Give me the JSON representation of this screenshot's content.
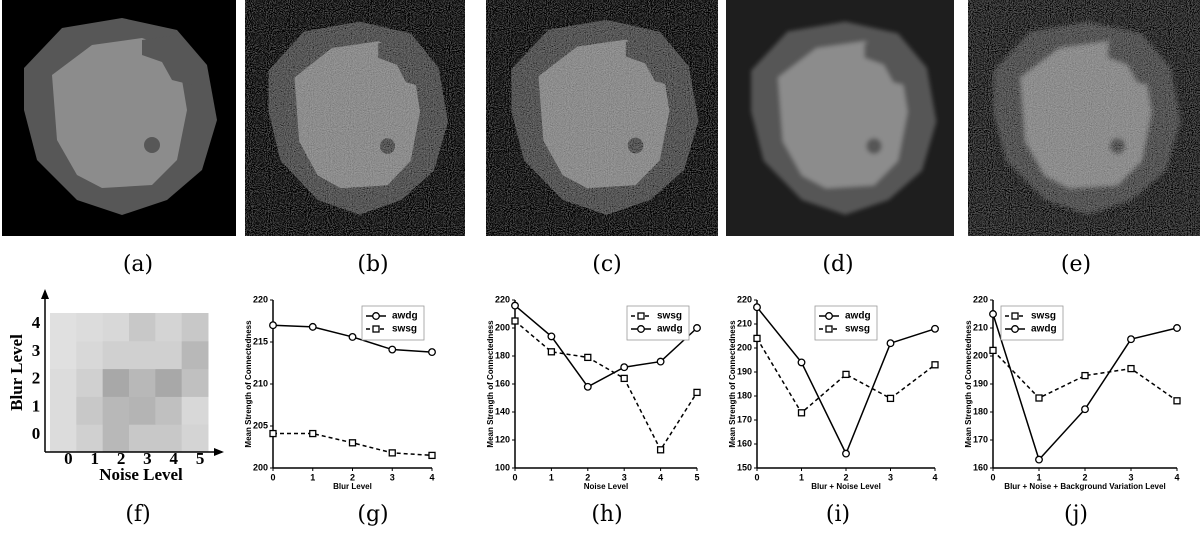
{
  "panel_labels": [
    "(a)",
    "(b)",
    "(c)",
    "(d)",
    "(e)",
    "(f)",
    "(g)",
    "(h)",
    "(i)",
    "(j)"
  ],
  "chart_data": [
    {
      "type": "heatmap",
      "xlabel": "Noise Level",
      "ylabel": "Blur Level",
      "x_categories": [
        "0",
        "1",
        "2",
        "3",
        "4",
        "5"
      ],
      "y_categories": [
        "0",
        "1",
        "2",
        "3",
        "4"
      ],
      "cell_colors": [
        [
          "#dcdcdc",
          "#d0d0d0",
          "#b8b8b8",
          "#c8c8c8",
          "#c8c8c8",
          "#d4d4d4"
        ],
        [
          "#dcdcdc",
          "#c8c8c8",
          "#b8b8b8",
          "#b4b4b4",
          "#c0c0c0",
          "#d8d8d8"
        ],
        [
          "#dcdcdc",
          "#d0d0d0",
          "#a8a8a8",
          "#b8b8b8",
          "#a8a8a8",
          "#c0c0c0"
        ],
        [
          "#e0e0e0",
          "#d8d8d8",
          "#d0d0d0",
          "#d0d0d0",
          "#d0d0d0",
          "#b8b8b8"
        ],
        [
          "#e0e0e0",
          "#dcdcdc",
          "#d8d8d8",
          "#c8c8c8",
          "#d4d4d4",
          "#c8c8c8"
        ]
      ]
    },
    {
      "type": "line",
      "xlabel": "Blur Level",
      "ylabel": "Mean Strength of Connectedness",
      "x": [
        0,
        1,
        2,
        3,
        4
      ],
      "xlim": [
        0,
        4
      ],
      "xticks": [
        0,
        1,
        2,
        3,
        4
      ],
      "ylim": [
        200,
        220
      ],
      "yticks": [
        200,
        205,
        210,
        215,
        220
      ],
      "legend": "upper right",
      "series": [
        {
          "name": "awdg",
          "color": "#000000",
          "marker": "circle",
          "dashed": false,
          "values": [
            217,
            216.8,
            215.6,
            214.1,
            213.8
          ]
        },
        {
          "name": "swsg",
          "color": "#000000",
          "marker": "square",
          "dashed": true,
          "values": [
            204.1,
            204.1,
            203,
            201.8,
            201.5
          ]
        }
      ]
    },
    {
      "type": "line",
      "xlabel": "Noise Level",
      "ylabel": "Mean Strength of Connectedness",
      "x": [
        0,
        1,
        2,
        3,
        4,
        5
      ],
      "xlim": [
        0,
        5
      ],
      "xticks": [
        0,
        1,
        2,
        3,
        4,
        5
      ],
      "ylim": [
        100,
        220
      ],
      "yticks": [
        100,
        120,
        140,
        160,
        180,
        200,
        220
      ],
      "legend": "upper right",
      "series": [
        {
          "name": "swsg",
          "color": "#000000",
          "marker": "square",
          "dashed": true,
          "values": [
            205,
            183,
            179,
            164,
            113,
            154
          ]
        },
        {
          "name": "awdg",
          "color": "#000000",
          "marker": "circle",
          "dashed": false,
          "values": [
            216,
            194,
            158,
            172,
            176,
            200
          ]
        }
      ]
    },
    {
      "type": "line",
      "xlabel": "Blur + Noise Level",
      "ylabel": "Mean Strength of Connectedness",
      "x": [
        0,
        1,
        2,
        3,
        4
      ],
      "xlim": [
        0,
        4
      ],
      "xticks": [
        0,
        1,
        2,
        3,
        4
      ],
      "ylim": [
        150,
        220
      ],
      "yticks": [
        150,
        160,
        170,
        180,
        190,
        200,
        210,
        220
      ],
      "legend": "upper center",
      "series": [
        {
          "name": "awdg",
          "color": "#000000",
          "marker": "circle",
          "dashed": false,
          "values": [
            217,
            194,
            156,
            202,
            208
          ]
        },
        {
          "name": "swsg",
          "color": "#000000",
          "marker": "square",
          "dashed": true,
          "values": [
            204,
            173,
            189,
            179,
            193
          ]
        }
      ]
    },
    {
      "type": "line",
      "xlabel": "Blur + Noise + Background Variation Level",
      "ylabel": "Mean Strength of Connectedness",
      "x": [
        0,
        1,
        2,
        3,
        4
      ],
      "xlim": [
        0,
        4
      ],
      "xticks": [
        0,
        1,
        2,
        3,
        4
      ],
      "ylim": [
        160,
        220
      ],
      "yticks": [
        160,
        170,
        180,
        190,
        200,
        210,
        220
      ],
      "legend": "upper left",
      "series": [
        {
          "name": "swsg",
          "color": "#000000",
          "marker": "square",
          "dashed": true,
          "values": [
            202,
            185,
            193,
            195.5,
            184
          ]
        },
        {
          "name": "awdg",
          "color": "#000000",
          "marker": "circle",
          "dashed": false,
          "values": [
            215,
            163,
            181,
            206,
            210
          ]
        }
      ]
    }
  ]
}
